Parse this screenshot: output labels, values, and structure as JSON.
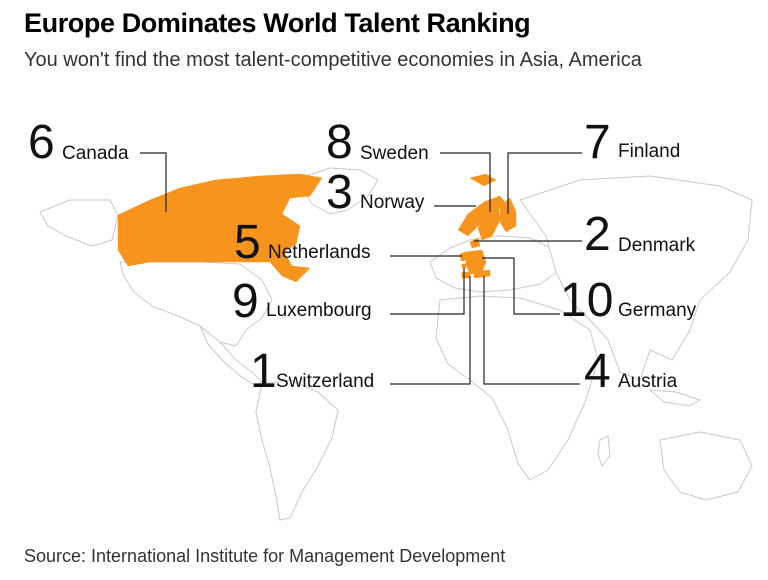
{
  "title": "Europe Dominates World Talent Ranking",
  "subtitle": "You won't find the most talent-competitive economies in Asia, America",
  "source": "Source: International Institute for Management Development",
  "highlight_color": "#f7941d",
  "countries": [
    {
      "id": "canada",
      "rank": "6",
      "name": "Canada"
    },
    {
      "id": "sweden",
      "rank": "8",
      "name": "Sweden"
    },
    {
      "id": "norway",
      "rank": "3",
      "name": "Norway"
    },
    {
      "id": "netherlands",
      "rank": "5",
      "name": "Netherlands"
    },
    {
      "id": "luxembourg",
      "rank": "9",
      "name": "Luxembourg"
    },
    {
      "id": "switzerland",
      "rank": "1",
      "name": "Switzerland"
    },
    {
      "id": "finland",
      "rank": "7",
      "name": "Finland"
    },
    {
      "id": "denmark",
      "rank": "2",
      "name": "Denmark"
    },
    {
      "id": "germany",
      "rank": "10",
      "name": "Germany"
    },
    {
      "id": "austria",
      "rank": "4",
      "name": "Austria"
    }
  ]
}
